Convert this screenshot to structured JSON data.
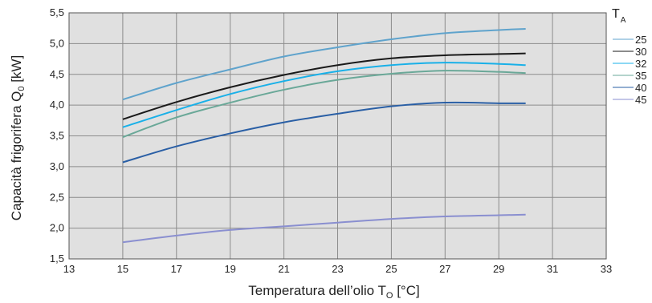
{
  "chart_data": {
    "type": "line",
    "title": "",
    "xlabel": {
      "main": "Temperatura dell’olio T",
      "sub": "O",
      "unit": " [°C]"
    },
    "ylabel": {
      "main": "Capacità frigorifera Q",
      "sub": "0",
      "unit": " [kW]"
    },
    "xlim": [
      13,
      33
    ],
    "ylim": [
      1.5,
      5.5
    ],
    "x_ticks": [
      "13",
      "15",
      "17",
      "19",
      "21",
      "23",
      "25",
      "27",
      "29",
      "31",
      "33"
    ],
    "y_ticks": [
      "1,5",
      "2,0",
      "2,5",
      "3,0",
      "3,5",
      "4,0",
      "4,5",
      "5,0",
      "5,5"
    ],
    "grid": true,
    "legend": {
      "title_main": "T",
      "title_sub": "A",
      "placement": "right"
    },
    "series": [
      {
        "name": "25",
        "color": "#5fa3cc",
        "points": [
          [
            15,
            4.09
          ],
          [
            17,
            4.36
          ],
          [
            19,
            4.58
          ],
          [
            21,
            4.79
          ],
          [
            23,
            4.94
          ],
          [
            25,
            5.07
          ],
          [
            27,
            5.17
          ],
          [
            29,
            5.22
          ],
          [
            30,
            5.24
          ]
        ]
      },
      {
        "name": "30",
        "color": "#1a1a1a",
        "points": [
          [
            15,
            3.77
          ],
          [
            17,
            4.05
          ],
          [
            19,
            4.29
          ],
          [
            21,
            4.49
          ],
          [
            23,
            4.65
          ],
          [
            25,
            4.76
          ],
          [
            27,
            4.81
          ],
          [
            29,
            4.83
          ],
          [
            30,
            4.84
          ]
        ]
      },
      {
        "name": "32",
        "color": "#19b0e8",
        "points": [
          [
            15,
            3.64
          ],
          [
            17,
            3.92
          ],
          [
            19,
            4.18
          ],
          [
            21,
            4.39
          ],
          [
            23,
            4.55
          ],
          [
            25,
            4.65
          ],
          [
            27,
            4.69
          ],
          [
            29,
            4.67
          ],
          [
            30,
            4.65
          ]
        ]
      },
      {
        "name": "35",
        "color": "#6aa898",
        "points": [
          [
            15,
            3.48
          ],
          [
            17,
            3.8
          ],
          [
            19,
            4.04
          ],
          [
            21,
            4.25
          ],
          [
            23,
            4.41
          ],
          [
            25,
            4.51
          ],
          [
            27,
            4.56
          ],
          [
            29,
            4.54
          ],
          [
            30,
            4.52
          ]
        ]
      },
      {
        "name": "40",
        "color": "#2a5fa5",
        "points": [
          [
            15,
            3.07
          ],
          [
            17,
            3.33
          ],
          [
            19,
            3.54
          ],
          [
            21,
            3.72
          ],
          [
            23,
            3.86
          ],
          [
            25,
            3.98
          ],
          [
            27,
            4.04
          ],
          [
            29,
            4.03
          ],
          [
            30,
            4.03
          ]
        ]
      },
      {
        "name": "45",
        "color": "#8a8fd0",
        "points": [
          [
            15,
            1.77
          ],
          [
            17,
            1.88
          ],
          [
            19,
            1.97
          ],
          [
            21,
            2.03
          ],
          [
            23,
            2.09
          ],
          [
            25,
            2.15
          ],
          [
            27,
            2.19
          ],
          [
            29,
            2.21
          ],
          [
            30,
            2.22
          ]
        ]
      }
    ]
  }
}
